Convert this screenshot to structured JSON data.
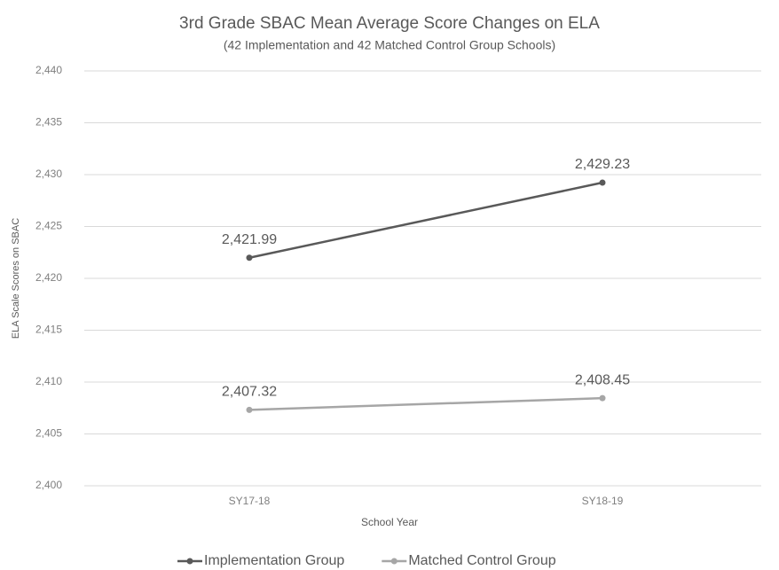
{
  "chart_data": {
    "type": "line",
    "title": "3rd Grade SBAC Mean Average Score Changes on ELA",
    "subtitle": "(42 Implementation and 42 Matched Control Group Schools)",
    "x_label": "School Year",
    "y_label": "ELA Scale Scores on SBAC",
    "categories": [
      "SY17-18",
      "SY18-19"
    ],
    "series": [
      {
        "name": "Implementation Group",
        "color": "#595959",
        "values": [
          2421.99,
          2429.23
        ],
        "value_labels": [
          "2,421.99",
          "2,429.23"
        ]
      },
      {
        "name": "Matched Control Group",
        "color": "#a6a6a6",
        "values": [
          2407.32,
          2408.45
        ],
        "value_labels": [
          "2,407.32",
          "2,408.45"
        ]
      }
    ],
    "ylim": [
      2400,
      2440
    ],
    "yticks": [
      {
        "value": 2400,
        "label": "2,400"
      },
      {
        "value": 2405,
        "label": "2,405"
      },
      {
        "value": 2410,
        "label": "2,410"
      },
      {
        "value": 2415,
        "label": "2,415"
      },
      {
        "value": 2420,
        "label": "2,420"
      },
      {
        "value": 2425,
        "label": "2,425"
      },
      {
        "value": 2430,
        "label": "2,430"
      },
      {
        "value": 2435,
        "label": "2,435"
      },
      {
        "value": 2440,
        "label": "2,440"
      }
    ],
    "grid": true,
    "legend": "bottom"
  }
}
